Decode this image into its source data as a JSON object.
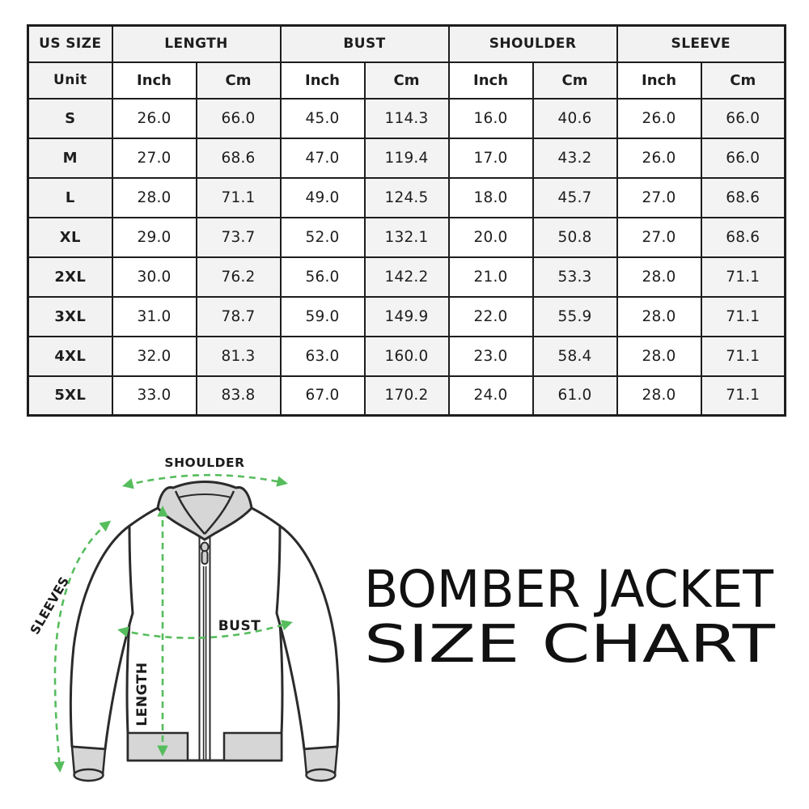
{
  "table": {
    "group_headers": [
      "US SIZE",
      "LENGTH",
      "BUST",
      "SHOULDER",
      "SLEEVE"
    ],
    "unit_row": {
      "label": "Unit",
      "cols": [
        "Inch",
        "Cm",
        "Inch",
        "Cm",
        "Inch",
        "Cm",
        "Inch",
        "Cm"
      ]
    },
    "rows": [
      {
        "size": "S",
        "values": [
          "26.0",
          "66.0",
          "45.0",
          "114.3",
          "16.0",
          "40.6",
          "26.0",
          "66.0"
        ]
      },
      {
        "size": "M",
        "values": [
          "27.0",
          "68.6",
          "47.0",
          "119.4",
          "17.0",
          "43.2",
          "26.0",
          "66.0"
        ]
      },
      {
        "size": "L",
        "values": [
          "28.0",
          "71.1",
          "49.0",
          "124.5",
          "18.0",
          "45.7",
          "27.0",
          "68.6"
        ]
      },
      {
        "size": "XL",
        "values": [
          "29.0",
          "73.7",
          "52.0",
          "132.1",
          "20.0",
          "50.8",
          "27.0",
          "68.6"
        ]
      },
      {
        "size": "2XL",
        "values": [
          "30.0",
          "76.2",
          "56.0",
          "142.2",
          "21.0",
          "53.3",
          "28.0",
          "71.1"
        ]
      },
      {
        "size": "3XL",
        "values": [
          "31.0",
          "78.7",
          "59.0",
          "149.9",
          "22.0",
          "55.9",
          "28.0",
          "71.1"
        ]
      },
      {
        "size": "4XL",
        "values": [
          "32.0",
          "81.3",
          "63.0",
          "160.0",
          "23.0",
          "58.4",
          "28.0",
          "71.1"
        ]
      },
      {
        "size": "5XL",
        "values": [
          "33.0",
          "83.8",
          "67.0",
          "170.2",
          "24.0",
          "61.0",
          "28.0",
          "71.1"
        ]
      }
    ]
  },
  "diagram": {
    "labels": {
      "shoulder": "SHOULDER",
      "sleeves": "SLEEVES",
      "bust": "BUST",
      "length": "LENGTH"
    },
    "arrow_color": "#56bd5d",
    "outline_color": "#2b2b2b",
    "rib_fill_color": "#d6d6d6"
  },
  "title": {
    "line1": "BOMBER JACKET",
    "line2": "SIZE CHART"
  }
}
